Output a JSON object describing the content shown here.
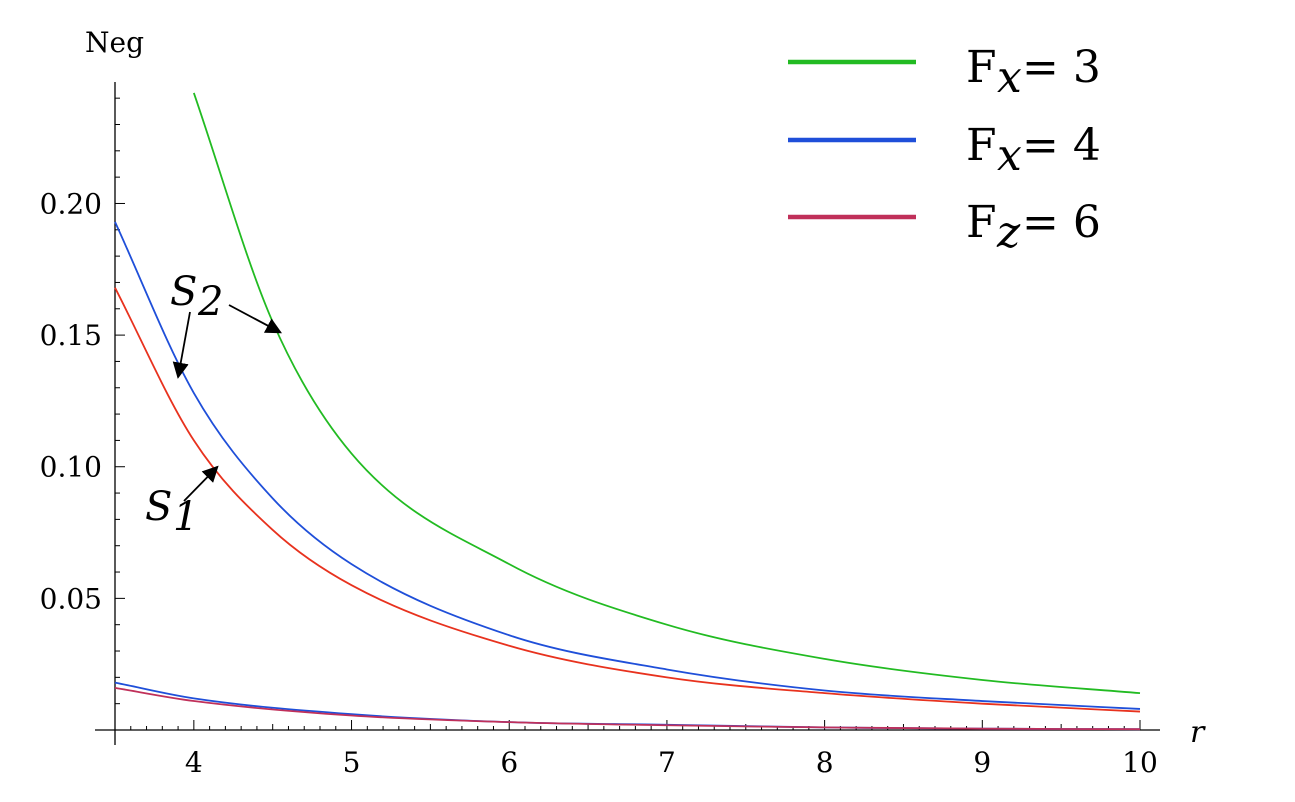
{
  "chart_data": {
    "type": "line",
    "xlabel": "r",
    "ylabel": "Neg",
    "xlim": [
      3.5,
      10
    ],
    "ylim": [
      0,
      0.245
    ],
    "x_ticks": [
      "4",
      "5",
      "6",
      "7",
      "8",
      "9",
      "10"
    ],
    "y_ticks": [
      "0.05",
      "0.10",
      "0.15",
      "0.20"
    ],
    "legend": [
      {
        "label_main": "F",
        "label_sub": "x",
        "label_rest": " = 3",
        "color": "#22bb22"
      },
      {
        "label_main": "F",
        "label_sub": "x",
        "label_rest": " = 4",
        "color": "#1f4fd9"
      },
      {
        "label_main": "F",
        "label_sub": "z",
        "label_rest": " = 6",
        "color": "#c0305a"
      }
    ],
    "legend_position": "top-right",
    "series": [
      {
        "key": "fx3",
        "color": "#22bb22",
        "x": [
          4,
          4.5,
          5,
          6,
          7,
          8,
          9,
          10
        ],
        "y": [
          0.242,
          0.155,
          0.105,
          0.063,
          0.04,
          0.027,
          0.019,
          0.014
        ]
      },
      {
        "key": "fx4_S2",
        "color": "#1f4fd9",
        "x": [
          3.5,
          4,
          4.5,
          5,
          6,
          7,
          8,
          9,
          10
        ],
        "y": [
          0.193,
          0.128,
          0.088,
          0.063,
          0.036,
          0.023,
          0.015,
          0.011,
          0.008
        ]
      },
      {
        "key": "fz6_S1",
        "color": "#e8321e",
        "x": [
          3.5,
          4,
          4.5,
          5,
          6,
          7,
          8,
          9,
          10
        ],
        "y": [
          0.168,
          0.11,
          0.076,
          0.055,
          0.032,
          0.02,
          0.014,
          0.01,
          0.007
        ]
      },
      {
        "key": "fx4_low",
        "color": "#1f4fd9",
        "x": [
          3.5,
          4,
          5,
          6,
          7,
          8,
          9,
          10
        ],
        "y": [
          0.018,
          0.012,
          0.006,
          0.003,
          0.002,
          0.001,
          0.0005,
          0.0003
        ]
      },
      {
        "key": "fz6_low",
        "color": "#c0305a",
        "x": [
          3.5,
          4,
          5,
          6,
          7,
          8,
          9,
          10
        ],
        "y": [
          0.016,
          0.011,
          0.0055,
          0.003,
          0.0018,
          0.001,
          0.0005,
          0.0003
        ]
      }
    ],
    "annotations": [
      {
        "main": "S",
        "sub": "2",
        "targets": [
          [
            3.9,
            0.134
          ],
          [
            4.55,
            0.151
          ]
        ]
      },
      {
        "main": "S",
        "sub": "1",
        "targets": [
          [
            4.15,
            0.1
          ]
        ]
      }
    ]
  }
}
